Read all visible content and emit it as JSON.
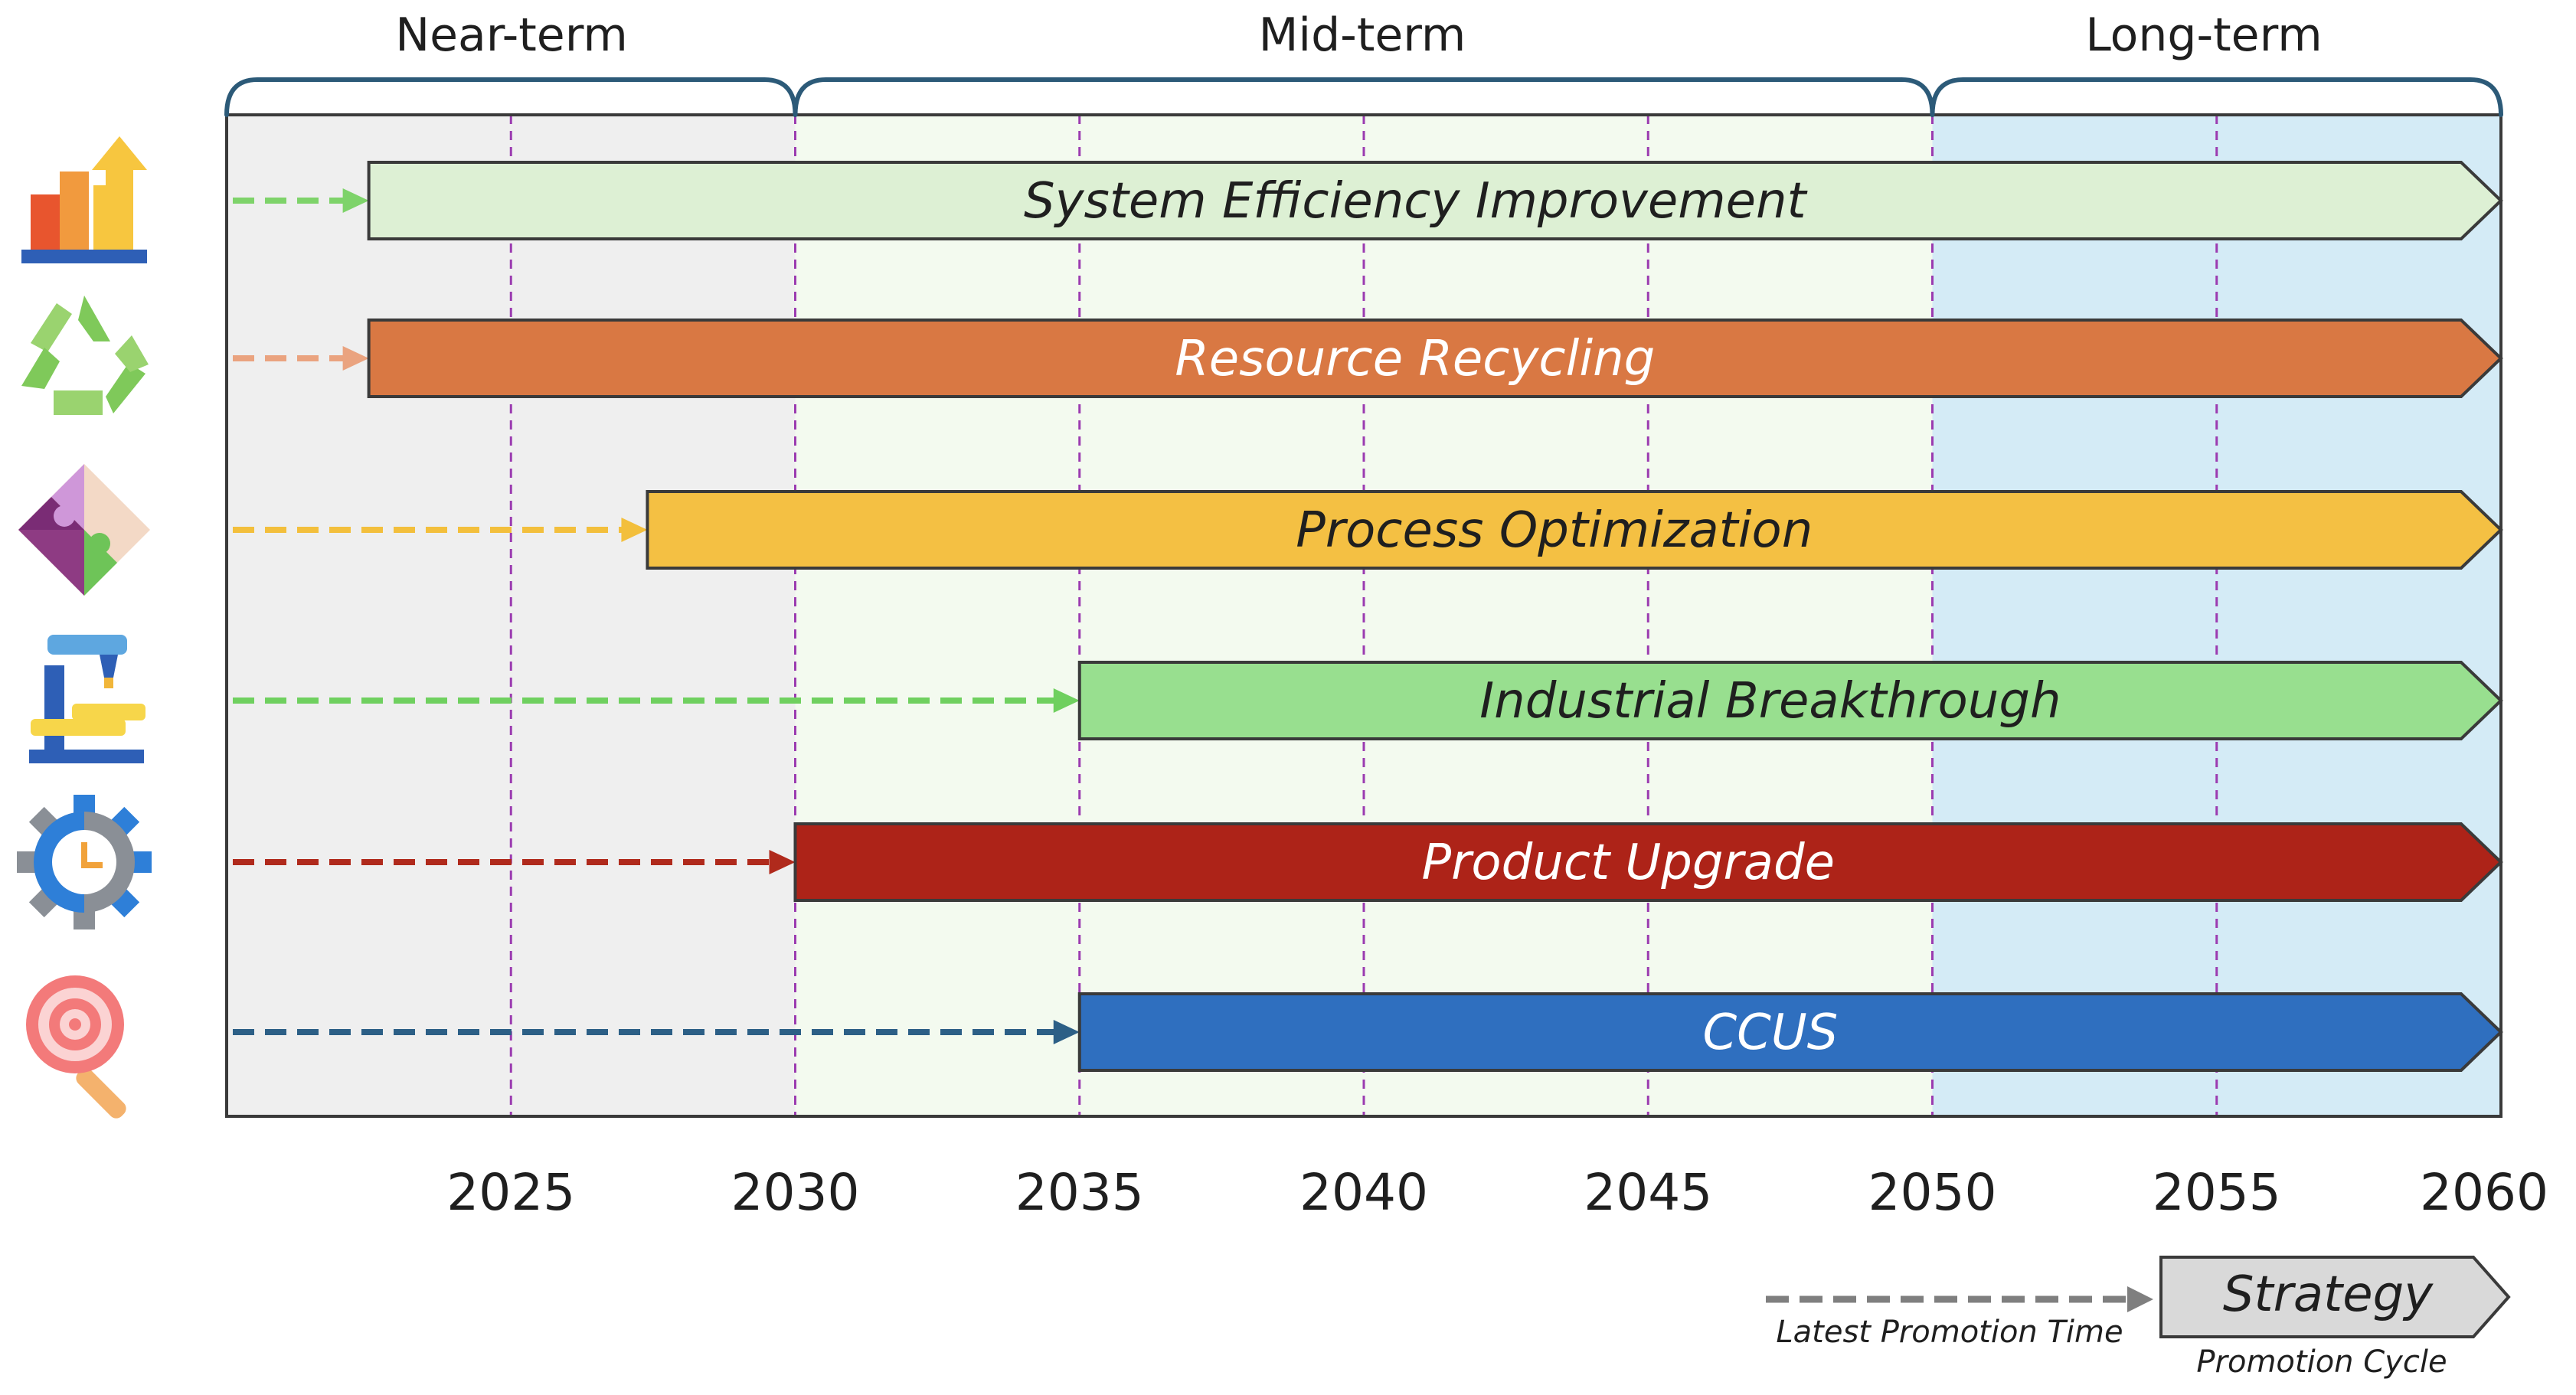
{
  "diagram": {
    "phases": [
      {
        "label": "Near-term",
        "start": 2020,
        "end": 2030,
        "color": "#efefef"
      },
      {
        "label": "Mid-term",
        "start": 2030,
        "end": 2050,
        "color": "#f3faef"
      },
      {
        "label": "Long-term",
        "start": 2050,
        "end": 2060,
        "color": "#d4ebf6"
      }
    ],
    "axis": {
      "min": 2020,
      "max": 2060,
      "ticks": [
        2025,
        2030,
        2035,
        2040,
        2045,
        2050,
        2055,
        2060
      ],
      "tick_labels": [
        "2025",
        "2030",
        "2035",
        "2040",
        "2045",
        "2050",
        "2055",
        "2060"
      ]
    },
    "bars": [
      {
        "label": "System Efficiency Improvement",
        "start": 2022.5,
        "end": 2060,
        "fill": "#ddf0d4",
        "text_color": "#1f1f1f",
        "arrow_color": "#7ed36a",
        "icon": "bar-chart-growth-icon"
      },
      {
        "label": "Resource Recycling",
        "start": 2022.5,
        "end": 2060,
        "fill": "#d97843",
        "text_color": "#ffffff",
        "arrow_color": "#eaa37f",
        "icon": "recycle-icon"
      },
      {
        "label": "Process Optimization",
        "start": 2027.4,
        "end": 2060,
        "fill": "#f4c043",
        "text_color": "#1f1f1f",
        "arrow_color": "#f3bf3c",
        "icon": "puzzle-icon"
      },
      {
        "label": "Industrial Breakthrough",
        "start": 2035,
        "end": 2060,
        "fill": "#98df8f",
        "text_color": "#1f1f1f",
        "arrow_color": "#6fd05f",
        "icon": "microscope-icon"
      },
      {
        "label": "Product Upgrade",
        "start": 2030,
        "end": 2060,
        "fill": "#ad2318",
        "text_color": "#ffffff",
        "arrow_color": "#b02a1c",
        "icon": "gear-clock-icon"
      },
      {
        "label": "CCUS",
        "start": 2035,
        "end": 2060,
        "fill": "#2f6fbf",
        "text_color": "#ffffff",
        "arrow_color": "#2c5f86",
        "icon": "search-lollipop-icon"
      }
    ],
    "legend": {
      "arrow_label": "Latest Promotion Time",
      "box_label": "Strategy",
      "cycle_label": "Promotion Cycle"
    }
  }
}
